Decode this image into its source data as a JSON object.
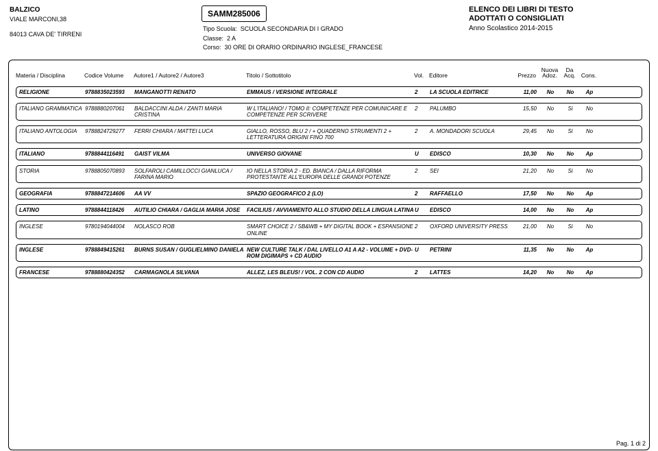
{
  "header": {
    "school_name": "BALZICO",
    "address_line1": "VIALE MARCONI,38",
    "address_line2": "84013  CAVA DE' TIRRENI",
    "school_code": "SAMM285006",
    "tipo_label": "Tipo Scuola:",
    "tipo_value": "SCUOLA SECONDARIA DI I GRADO",
    "classe_label": "Classe:",
    "classe_value": "2 A",
    "corso_label": "Corso:",
    "corso_value": "30 ORE DI ORARIO ORDINARIO INGLESE_FRANCESE",
    "elenco_line1": "ELENCO DEI LIBRI DI TESTO",
    "elenco_line2": "ADOTTATI O CONSIGLIATI",
    "anno": "Anno Scolastico 2014-2015"
  },
  "columns": {
    "materia": "Materia / Disciplina",
    "codice": "Codice Volume",
    "autore": "Autore1 / Autore2 / Autore3",
    "titolo": "Titolo / Sottotitolo",
    "vol": "Vol.",
    "editore": "Editore",
    "prezzo": "Prezzo",
    "nuova1": "Nuova",
    "nuova2": "Adoz.",
    "da1": "Da",
    "da2": "Acq.",
    "cons": "Cons."
  },
  "rows": [
    {
      "bold": true,
      "materia": "RELIGIONE",
      "codice": "9788835023593",
      "autore": "MANGANOTTI RENATO",
      "titolo": "EMMAUS / VERSIONE INTEGRALE",
      "vol": "2",
      "editore": "LA SCUOLA EDITRICE",
      "prezzo": "11,00",
      "nuova": "No",
      "da": "No",
      "cons": "Ap"
    },
    {
      "bold": false,
      "materia": "ITALIANO GRAMMATICA",
      "codice": "9788880207061",
      "autore": "BALDACCINI ALDA / ZANTI MARIA CRISTINA",
      "titolo": "W L'ITALIANO! / TOMO II: COMPETENZE PER COMUNICARE E COMPETENZE PER SCRIVERE",
      "vol": "2",
      "editore": "PALUMBO",
      "prezzo": "15,50",
      "nuova": "No",
      "da": "Si",
      "cons": "No"
    },
    {
      "bold": false,
      "materia": "ITALIANO ANTOLOGIA",
      "codice": "9788824729277",
      "autore": "FERRI CHIARA / MATTEI LUCA",
      "titolo": "GIALLO, ROSSO, BLU 2 / + QUADERNO STRUMENTI 2 + LETTERATURA ORIGINI FINO 700",
      "vol": "2",
      "editore": "A. MONDADORI SCUOLA",
      "prezzo": "29,45",
      "nuova": "No",
      "da": "Si",
      "cons": "No"
    },
    {
      "bold": true,
      "materia": "ITALIANO",
      "codice": "9788844116491",
      "autore": "GAIST VILMA",
      "titolo": "UNIVERSO GIOVANE",
      "vol": "U",
      "editore": "EDISCO",
      "prezzo": "10,30",
      "nuova": "No",
      "da": "No",
      "cons": "Ap"
    },
    {
      "bold": false,
      "materia": "STORIA",
      "codice": "9788805070893",
      "autore": "SOLFAROLI CAMILLOCCI GIANLUCA / FARINA MARIO",
      "titolo": "IO NELLA STORIA 2 - ED. BIANCA / DALLA RIFORMA PROTESTANTE ALL'EUROPA DELLE GRANDI POTENZE",
      "vol": "2",
      "editore": "SEI",
      "prezzo": "21,20",
      "nuova": "No",
      "da": "Si",
      "cons": "No"
    },
    {
      "bold": true,
      "materia": "GEOGRAFIA",
      "codice": "9788847214606",
      "autore": "AA VV",
      "titolo": "SPAZIO GEOGRAFICO 2 (LO)",
      "vol": "2",
      "editore": "RAFFAELLO",
      "prezzo": "17,50",
      "nuova": "No",
      "da": "No",
      "cons": "Ap"
    },
    {
      "bold": true,
      "materia": "LATINO",
      "codice": "9788844118426",
      "autore": "AUTILIO CHIARA / GAGLIA MARIA JOSE",
      "titolo": "FACILIUS / AVVIAMENTO ALLO STUDIO DELLA LINGUA LATINA",
      "vol": "U",
      "editore": "EDISCO",
      "prezzo": "14,00",
      "nuova": "No",
      "da": "No",
      "cons": "Ap"
    },
    {
      "bold": false,
      "materia": "INGLESE",
      "codice": "9780194044004",
      "autore": "NOLASCO ROB",
      "titolo": "SMART CHOICE 2 / SB&WB + MY DIGITAL BOOK + ESPANSIONE ONLINE",
      "vol": "2",
      "editore": "OXFORD UNIVERSITY PRESS",
      "prezzo": "21,00",
      "nuova": "No",
      "da": "Si",
      "cons": "No"
    },
    {
      "bold": true,
      "materia": "INGLESE",
      "codice": "9788849415261",
      "autore": "BURNS SUSAN / GUGLIELMINO DANIELA",
      "titolo": "NEW CULTURE TALK / DAL LIVELLO A1 A A2 - VOLUME + DVD-ROM DIGIMAPS + CD AUDIO",
      "vol": "U",
      "editore": "PETRINI",
      "prezzo": "11,35",
      "nuova": "No",
      "da": "No",
      "cons": "Ap"
    },
    {
      "bold": true,
      "materia": "FRANCESE",
      "codice": "9788880424352",
      "autore": "CARMAGNOLA SILVANA",
      "titolo": "ALLEZ, LES BLEUS! / VOL. 2 CON CD AUDIO",
      "vol": "2",
      "editore": "LATTES",
      "prezzo": "14,20",
      "nuova": "No",
      "da": "No",
      "cons": "Ap"
    }
  ],
  "footer": {
    "page": "Pag. 1 di 2"
  }
}
